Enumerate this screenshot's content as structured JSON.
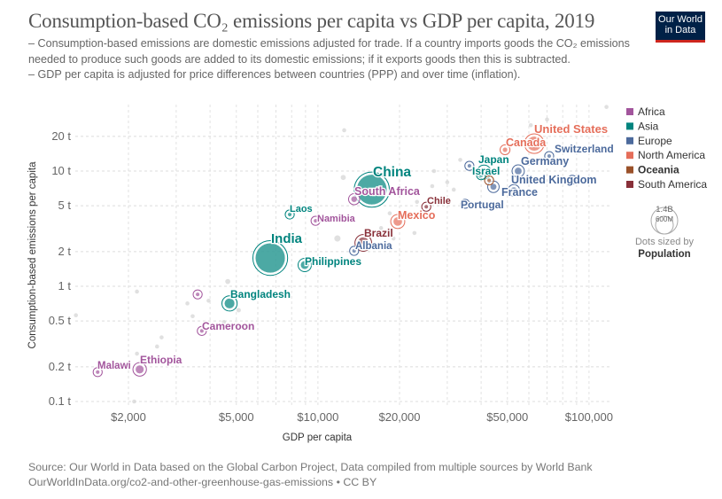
{
  "header": {
    "title": "Consumption-based CO₂ emissions per capita vs GDP per capita, 2019",
    "subtitle_1": "– Consumption-based emissions are domestic emissions adjusted for trade. If a country imports goods the CO₂ emissions needed to produce such goods are added to its domestic emissions; if it exports goods then this is subtracted.",
    "subtitle_2": "– GDP per capita is adjusted for price differences between countries (PPP) and over time (inflation).",
    "logo_line1": "Our World",
    "logo_line2": "in Data"
  },
  "footer": {
    "source": "Source: Our World in Data based on the Global Carbon Project, Data compiled from multiple sources by World Bank",
    "url": "OurWorldInData.org/co2-and-other-greenhouse-gas-emissions",
    "license": " • CC BY"
  },
  "chart_data": {
    "type": "scatter",
    "title": "Consumption-based CO₂ emissions per capita vs GDP per capita, 2019",
    "xlabel": "GDP per capita",
    "ylabel": "Consumption-based emissions per capita",
    "x_scale": "log",
    "y_scale": "log",
    "xlim": [
      1250,
      120000
    ],
    "ylim": [
      0.09,
      40
    ],
    "x_ticks": [
      {
        "v": 2000,
        "label": "$2,000"
      },
      {
        "v": 5000,
        "label": "$5,000"
      },
      {
        "v": 10000,
        "label": "$10,000"
      },
      {
        "v": 20000,
        "label": "$20,000"
      },
      {
        "v": 50000,
        "label": "$50,000"
      },
      {
        "v": 100000,
        "label": "$100,000"
      }
    ],
    "y_ticks": [
      {
        "v": 0.1,
        "label": "0.1 t"
      },
      {
        "v": 0.2,
        "label": "0.2 t"
      },
      {
        "v": 0.5,
        "label": "0.5 t"
      },
      {
        "v": 1,
        "label": "1 t"
      },
      {
        "v": 2,
        "label": "2 t"
      },
      {
        "v": 5,
        "label": "5 t"
      },
      {
        "v": 10,
        "label": "10 t"
      },
      {
        "v": 20,
        "label": "20 t"
      }
    ],
    "grid": true,
    "legend_placement": "right",
    "legend": [
      {
        "name": "Africa",
        "color": "#a2559c",
        "bold": false
      },
      {
        "name": "Asia",
        "color": "#00847e",
        "bold": false
      },
      {
        "name": "Europe",
        "color": "#4c6a9c",
        "bold": false
      },
      {
        "name": "North America",
        "color": "#e56e5a",
        "bold": false
      },
      {
        "name": "Oceania",
        "color": "#9a5129",
        "bold": true
      },
      {
        "name": "South America",
        "color": "#883039",
        "bold": false
      }
    ],
    "size_legend": {
      "large": "1.4B",
      "small": "600M",
      "caption": "Dots sized by",
      "variable": "Population"
    },
    "points": [
      {
        "name": "Malawi",
        "continent": "Africa",
        "gdp": 1540,
        "co2": 0.18,
        "pop": 19000000,
        "label": true
      },
      {
        "name": "Ethiopia",
        "continent": "Africa",
        "gdp": 2200,
        "co2": 0.19,
        "pop": 112000000,
        "label": true
      },
      {
        "name": "Cameroon",
        "continent": "Africa",
        "gdp": 3730,
        "co2": 0.41,
        "pop": 26000000,
        "label": true
      },
      {
        "name": "Bangladesh",
        "continent": "Asia",
        "gdp": 4720,
        "co2": 0.71,
        "pop": 163000000,
        "label": true
      },
      {
        "name": "India",
        "continent": "Asia",
        "gdp": 6670,
        "co2": 1.76,
        "pop": 1370000000,
        "label": true
      },
      {
        "name": "Philippines",
        "continent": "Asia",
        "gdp": 8940,
        "co2": 1.53,
        "pop": 108000000,
        "label": true
      },
      {
        "name": "Laos",
        "continent": "Asia",
        "gdp": 7870,
        "co2": 4.2,
        "pop": 7000000,
        "label": true
      },
      {
        "name": "Namibia",
        "continent": "Africa",
        "gdp": 9800,
        "co2": 3.7,
        "pop": 2500000,
        "label": true
      },
      {
        "name": "South Africa",
        "continent": "Africa",
        "gdp": 13600,
        "co2": 5.7,
        "pop": 58000000,
        "label": true
      },
      {
        "name": "China",
        "continent": "Asia",
        "gdp": 15800,
        "co2": 6.9,
        "pop": 1410000000,
        "label": true
      },
      {
        "name": "Albania",
        "continent": "Europe",
        "gdp": 13600,
        "co2": 2.03,
        "pop": 2900000,
        "label": true
      },
      {
        "name": "Brazil",
        "continent": "South America",
        "gdp": 14700,
        "co2": 2.38,
        "pop": 211000000,
        "label": true
      },
      {
        "name": "Mexico",
        "continent": "North America",
        "gdp": 19700,
        "co2": 3.65,
        "pop": 127000000,
        "label": true
      },
      {
        "name": "Chile",
        "continent": "South America",
        "gdp": 25100,
        "co2": 4.9,
        "pop": 19000000,
        "label": true
      },
      {
        "name": "Portugal",
        "continent": "Europe",
        "gdp": 34900,
        "co2": 5.2,
        "pop": 10000000,
        "label": true
      },
      {
        "name": "France",
        "continent": "Europe",
        "gdp": 44400,
        "co2": 7.3,
        "pop": 65000000,
        "label": true
      },
      {
        "name": "United Kingdom",
        "continent": "Europe",
        "gdp": 52800,
        "co2": 6.8,
        "pop": 67000000,
        "label": true
      },
      {
        "name": "Germany",
        "continent": "Europe",
        "gdp": 54800,
        "co2": 10,
        "pop": 83000000,
        "label": true
      },
      {
        "name": "Israel",
        "continent": "Asia",
        "gdp": 40000,
        "co2": 9.2,
        "pop": 9000000,
        "label": true
      },
      {
        "name": "Japan",
        "continent": "Asia",
        "gdp": 41000,
        "co2": 9.8,
        "pop": 126000000,
        "label": true
      },
      {
        "name": "Switzerland",
        "continent": "Europe",
        "gdp": 71300,
        "co2": 13.5,
        "pop": 8600000,
        "label": true
      },
      {
        "name": "Canada",
        "continent": "North America",
        "gdp": 49000,
        "co2": 15.3,
        "pop": 37000000,
        "label": true
      },
      {
        "name": "United States",
        "continent": "North America",
        "gdp": 62800,
        "co2": 17.3,
        "pop": 329000000,
        "label": true
      },
      {
        "name": "",
        "continent": "Africa",
        "gdp": 3600,
        "co2": 0.85,
        "pop": 5000000,
        "label": false
      },
      {
        "name": "",
        "continent": "Europe",
        "gdp": 36200,
        "co2": 11.1,
        "pop": 5000000,
        "label": false
      },
      {
        "name": "",
        "continent": "Oceania",
        "gdp": 42800,
        "co2": 8.3,
        "pop": 25000000,
        "label": false
      },
      {
        "name": "",
        "continent": "Europe",
        "gdp": 86700,
        "co2": 8.4,
        "pop": 600000,
        "label": false
      },
      {
        "name": "",
        "continent": null,
        "gdp": 12500,
        "co2": 22.6,
        "pop": 2000000
      },
      {
        "name": "",
        "continent": null,
        "gdp": 12400,
        "co2": 8.8,
        "pop": 40000000
      },
      {
        "name": "",
        "continent": null,
        "gdp": 11800,
        "co2": 2.6,
        "pop": 60000000
      },
      {
        "name": "",
        "continent": null,
        "gdp": 8000,
        "co2": 2.6,
        "pop": 3000000
      },
      {
        "name": "",
        "continent": null,
        "gdp": 4650,
        "co2": 1.1,
        "pop": 40000000
      },
      {
        "name": "",
        "continent": null,
        "gdp": 5100,
        "co2": 0.62,
        "pop": 30000000
      },
      {
        "name": "",
        "continent": null,
        "gdp": 3300,
        "co2": 0.71,
        "pop": 5000000
      },
      {
        "name": "",
        "continent": null,
        "gdp": 3450,
        "co2": 0.55,
        "pop": 3000000
      },
      {
        "name": "",
        "continent": null,
        "gdp": 3950,
        "co2": 0.75,
        "pop": 5000000
      },
      {
        "name": "",
        "continent": null,
        "gdp": 4500,
        "co2": 0.49,
        "pop": 10000000
      },
      {
        "name": "",
        "continent": null,
        "gdp": 2650,
        "co2": 0.36,
        "pop": 15000000
      },
      {
        "name": "",
        "continent": null,
        "gdp": 2550,
        "co2": 0.3,
        "pop": 3000000
      },
      {
        "name": "",
        "continent": null,
        "gdp": 2150,
        "co2": 0.9,
        "pop": 3000000
      },
      {
        "name": "",
        "continent": null,
        "gdp": 1280,
        "co2": 0.56,
        "pop": 5000000
      },
      {
        "name": "",
        "continent": null,
        "gdp": 2100,
        "co2": 0.1,
        "pop": 3000000
      },
      {
        "name": "",
        "continent": null,
        "gdp": 2150,
        "co2": 0.26,
        "pop": 3000000
      },
      {
        "name": "",
        "continent": null,
        "gdp": 22700,
        "co2": 2.9,
        "pop": 5000000
      },
      {
        "name": "",
        "continent": null,
        "gdp": 26800,
        "co2": 10,
        "pop": 10000000
      },
      {
        "name": "",
        "continent": null,
        "gdp": 30000,
        "co2": 8,
        "pop": 5000000
      },
      {
        "name": "",
        "continent": null,
        "gdp": 33500,
        "co2": 12.5,
        "pop": 3000000
      },
      {
        "name": "",
        "continent": null,
        "gdp": 61000,
        "co2": 25,
        "pop": 3000000
      },
      {
        "name": "",
        "continent": null,
        "gdp": 70000,
        "co2": 28,
        "pop": 2000000
      },
      {
        "name": "",
        "continent": null,
        "gdp": 116000,
        "co2": 36,
        "pop": 1000000
      },
      {
        "name": "",
        "continent": null,
        "gdp": 23200,
        "co2": 5.4,
        "pop": 3000000
      },
      {
        "name": "",
        "continent": null,
        "gdp": 19000,
        "co2": 2.6,
        "pop": 10000000
      },
      {
        "name": "",
        "continent": null,
        "gdp": 26400,
        "co2": 7.4,
        "pop": 5000000
      },
      {
        "name": "",
        "continent": null,
        "gdp": 31700,
        "co2": 6.9,
        "pop": 3000000
      },
      {
        "name": "",
        "continent": null,
        "gdp": 18400,
        "co2": 4.3,
        "pop": 20000000
      },
      {
        "name": "",
        "continent": null,
        "gdp": 17100,
        "co2": 3.2,
        "pop": 5000000
      }
    ]
  }
}
